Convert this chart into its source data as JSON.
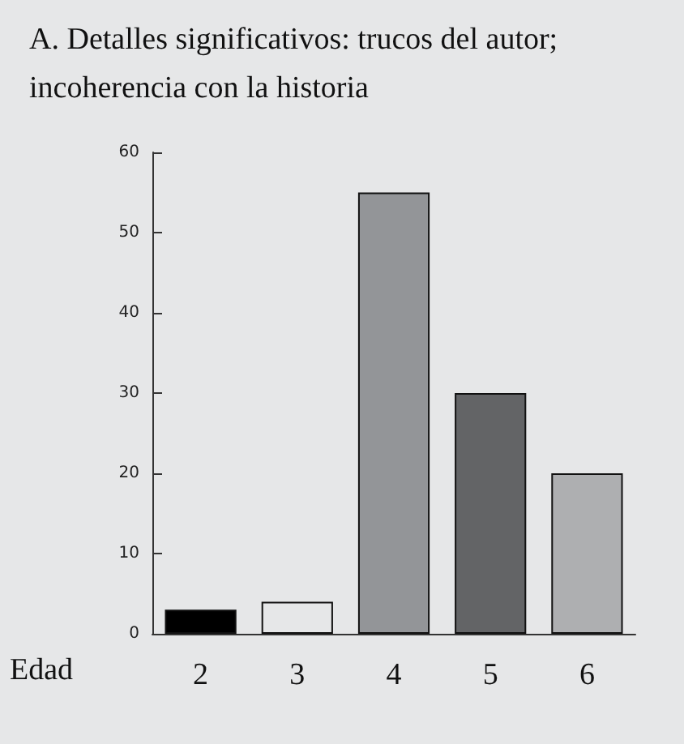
{
  "chart_data": {
    "type": "bar",
    "title": "A. Detalles significativos: trucos del autor; incoherencia con la historia",
    "xlabel": "Edad",
    "categories": [
      "2",
      "3",
      "4",
      "5",
      "6"
    ],
    "values": [
      3,
      4,
      55,
      30,
      20
    ],
    "colors": [
      "#000000",
      "#e6e7e8",
      "#939598",
      "#636466",
      "#aeafb1"
    ],
    "ylim": [
      0,
      60
    ],
    "yticks": [
      0,
      10,
      20,
      30,
      40,
      50,
      60
    ],
    "grid": false
  }
}
